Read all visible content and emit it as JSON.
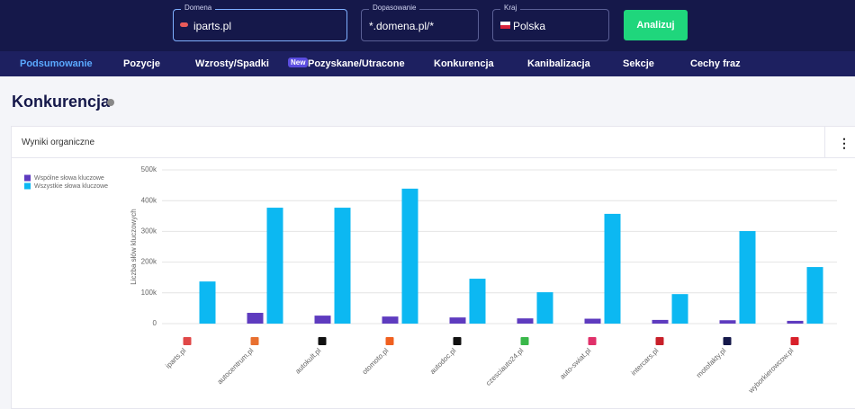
{
  "header": {
    "fields": [
      {
        "label": "Domena",
        "value": "iparts.pl"
      },
      {
        "label": "Dopasowanie",
        "value": "*.domena.pl/*"
      },
      {
        "label": "Kraj",
        "value": "Polska"
      }
    ],
    "button": "Analizuj"
  },
  "nav": {
    "items": [
      "Podsumowanie",
      "Pozycje",
      "Wzrosty/Spadki",
      "Pozyskane/Utracone",
      "Konkurencja",
      "Kanibalizacja",
      "Sekcje",
      "Cechy fraz"
    ],
    "badge": "New"
  },
  "page": {
    "title": "Konkurencja",
    "card_title": "Wyniki organiczne"
  },
  "chart_data": {
    "type": "bar",
    "y_label": "Liczba słów kluczowych",
    "categories": [
      "iparts.pl",
      "autocentrum.pl",
      "autokult.pl",
      "otomoto.pl",
      "autodoc.pl",
      "czesciauto24.pl",
      "auto-swiat.pl",
      "intercars.pl",
      "motofakty.pl",
      "wyborkierowcow.pl"
    ],
    "series": [
      {
        "name": "Wspólne słowa kluczowe",
        "color": "#5e3bbf",
        "values": [
          0,
          35000,
          26000,
          23000,
          20000,
          17000,
          16000,
          12000,
          11000,
          9000
        ]
      },
      {
        "name": "Wszystkie słowa kluczowe",
        "color": "#0cb8f2",
        "values": [
          137000,
          377000,
          377000,
          439000,
          146000,
          102000,
          357000,
          96000,
          301000,
          184000
        ]
      }
    ],
    "ylim": [
      0,
      500000
    ],
    "yticks": [
      0,
      {
        "value": 100000,
        "label": "100k"
      },
      {
        "value": 200000,
        "label": "200k"
      },
      {
        "value": 300000,
        "label": "300k"
      },
      {
        "value": 400000,
        "label": "400k"
      },
      {
        "value": 500000,
        "label": "500k"
      }
    ],
    "grid": true,
    "legend": "top-left"
  }
}
